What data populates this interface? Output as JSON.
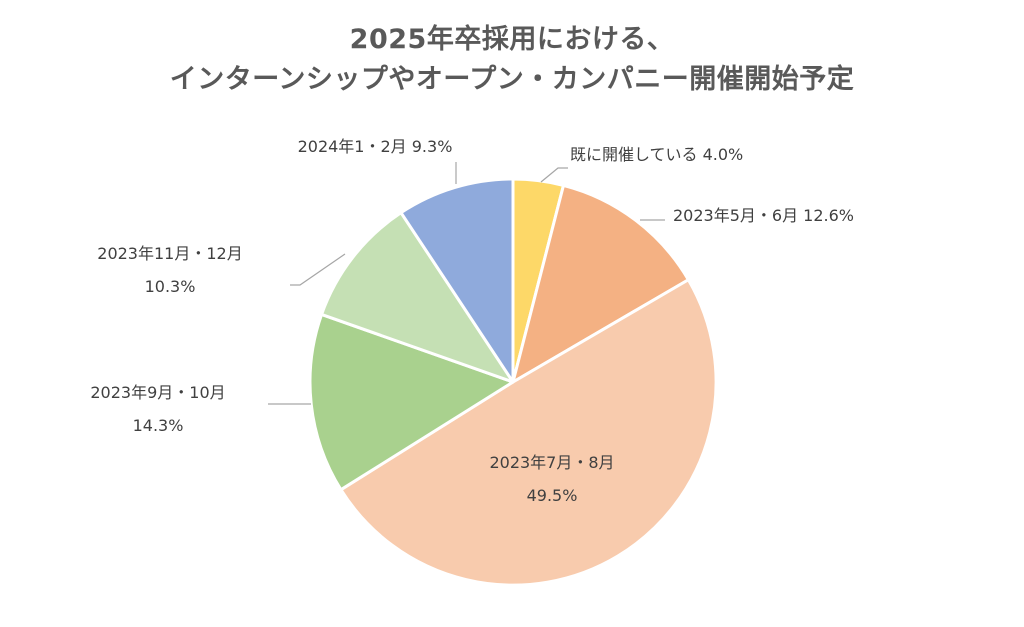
{
  "chart_data": {
    "type": "pie",
    "title": "2025年卒採用における、",
    "subtitle": "インターンシップやオープン・カンパニー開催開始予定",
    "slices": [
      {
        "name": "既に開催している",
        "value": 4.0,
        "value_label": "4.0%",
        "color": "#FDD868"
      },
      {
        "name": "2023年5月・6月",
        "value": 12.6,
        "value_label": "12.6%",
        "color": "#F4B183"
      },
      {
        "name": "2023年7月・8月",
        "value": 49.5,
        "value_label": "49.5%",
        "color": "#F8CBAD"
      },
      {
        "name": "2023年9月・10月",
        "value": 14.3,
        "value_label": "14.3%",
        "color": "#A9D18E"
      },
      {
        "name": "2023年11月・12月",
        "value": 10.3,
        "value_label": "10.3%",
        "color": "#C5E0B4"
      },
      {
        "name": "2024年1・2月",
        "value": 9.3,
        "value_label": "9.3%",
        "color": "#8FAADC"
      }
    ],
    "start": "12 o'clock",
    "direction": "clockwise",
    "legend": "none",
    "data_labels": "outside with leader lines (inside for largest slice)"
  }
}
